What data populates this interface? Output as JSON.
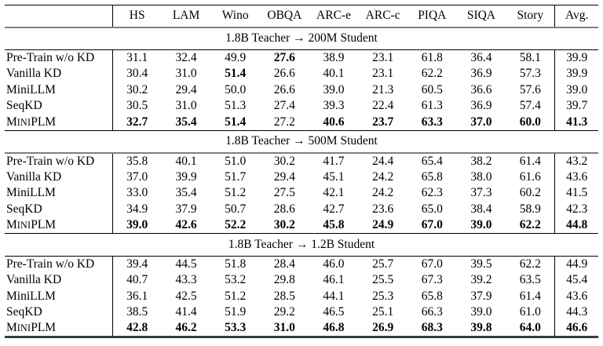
{
  "table": {
    "columns": [
      "HS",
      "LAM",
      "Wino",
      "OBQA",
      "ARC-e",
      "ARC-c",
      "PIQA",
      "SIQA",
      "Story",
      "Avg."
    ],
    "sections": [
      {
        "title": "1.8B Teacher → 200M Student",
        "rows": [
          {
            "label": "Pre-Train w/o KD",
            "smallcaps": false,
            "values": [
              "31.1",
              "32.4",
              "49.9",
              "27.6",
              "38.9",
              "23.1",
              "61.8",
              "36.4",
              "58.1",
              "39.9"
            ],
            "bold": [
              3
            ]
          },
          {
            "label": "Vanilla KD",
            "smallcaps": false,
            "values": [
              "30.4",
              "31.0",
              "51.4",
              "26.6",
              "40.1",
              "23.1",
              "62.2",
              "36.9",
              "57.3",
              "39.9"
            ],
            "bold": [
              2
            ]
          },
          {
            "label": "MiniLLM",
            "smallcaps": false,
            "values": [
              "30.2",
              "29.4",
              "50.0",
              "26.6",
              "39.0",
              "21.3",
              "60.5",
              "36.6",
              "57.6",
              "39.0"
            ],
            "bold": []
          },
          {
            "label": "SeqKD",
            "smallcaps": false,
            "values": [
              "30.5",
              "31.0",
              "51.3",
              "27.4",
              "39.3",
              "22.4",
              "61.3",
              "36.9",
              "57.4",
              "39.7"
            ],
            "bold": []
          },
          {
            "label": "MiniPLM",
            "smallcaps": true,
            "values": [
              "32.7",
              "35.4",
              "51.4",
              "27.2",
              "40.6",
              "23.7",
              "63.3",
              "37.0",
              "60.0",
              "41.3"
            ],
            "bold": [
              0,
              1,
              2,
              4,
              5,
              6,
              7,
              8,
              9
            ]
          }
        ]
      },
      {
        "title": "1.8B Teacher → 500M Student",
        "rows": [
          {
            "label": "Pre-Train w/o KD",
            "smallcaps": false,
            "values": [
              "35.8",
              "40.1",
              "51.0",
              "30.2",
              "41.7",
              "24.4",
              "65.4",
              "38.2",
              "61.4",
              "43.2"
            ],
            "bold": []
          },
          {
            "label": "Vanilla KD",
            "smallcaps": false,
            "values": [
              "37.0",
              "39.9",
              "51.7",
              "29.4",
              "45.1",
              "24.2",
              "65.8",
              "38.0",
              "61.6",
              "43.6"
            ],
            "bold": []
          },
          {
            "label": "MiniLLM",
            "smallcaps": false,
            "values": [
              "33.0",
              "35.4",
              "51.2",
              "27.5",
              "42.1",
              "24.2",
              "62.3",
              "37.3",
              "60.2",
              "41.5"
            ],
            "bold": []
          },
          {
            "label": "SeqKD",
            "smallcaps": false,
            "values": [
              "34.9",
              "37.9",
              "50.7",
              "28.6",
              "42.7",
              "23.6",
              "65.0",
              "38.4",
              "58.9",
              "42.3"
            ],
            "bold": []
          },
          {
            "label": "MiniPLM",
            "smallcaps": true,
            "values": [
              "39.0",
              "42.6",
              "52.2",
              "30.2",
              "45.8",
              "24.9",
              "67.0",
              "39.0",
              "62.2",
              "44.8"
            ],
            "bold": [
              0,
              1,
              2,
              3,
              4,
              5,
              6,
              7,
              8,
              9
            ]
          }
        ]
      },
      {
        "title": "1.8B Teacher → 1.2B Student",
        "rows": [
          {
            "label": "Pre-Train w/o KD",
            "smallcaps": false,
            "values": [
              "39.4",
              "44.5",
              "51.8",
              "28.4",
              "46.0",
              "25.7",
              "67.0",
              "39.5",
              "62.2",
              "44.9"
            ],
            "bold": []
          },
          {
            "label": "Vanilla KD",
            "smallcaps": false,
            "values": [
              "40.7",
              "43.3",
              "53.2",
              "29.8",
              "46.1",
              "25.5",
              "67.3",
              "39.2",
              "63.5",
              "45.4"
            ],
            "bold": []
          },
          {
            "label": "MiniLLM",
            "smallcaps": false,
            "values": [
              "36.1",
              "42.5",
              "51.2",
              "28.5",
              "44.1",
              "25.3",
              "65.8",
              "37.9",
              "61.4",
              "43.6"
            ],
            "bold": []
          },
          {
            "label": "SeqKD",
            "smallcaps": false,
            "values": [
              "38.5",
              "41.4",
              "51.9",
              "29.2",
              "46.5",
              "25.1",
              "66.3",
              "39.0",
              "61.0",
              "44.3"
            ],
            "bold": []
          },
          {
            "label": "MiniPLM",
            "smallcaps": true,
            "values": [
              "42.8",
              "46.2",
              "53.3",
              "31.0",
              "46.8",
              "26.9",
              "68.3",
              "39.8",
              "64.0",
              "46.6"
            ],
            "bold": [
              0,
              1,
              2,
              3,
              4,
              5,
              6,
              7,
              8,
              9
            ]
          }
        ]
      }
    ]
  }
}
